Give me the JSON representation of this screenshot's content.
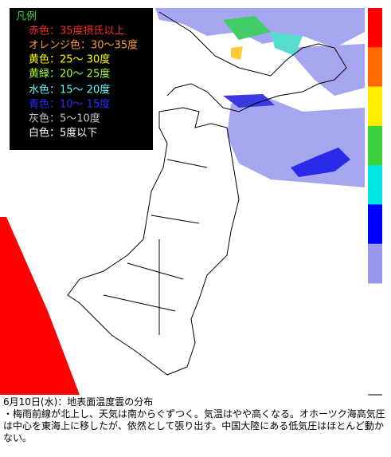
{
  "legend": {
    "title": "凡例",
    "items": [
      {
        "text": "赤色：35度摂氏以上",
        "color": "#ff2a2a"
      },
      {
        "text": "オレンジ色：30〜35度",
        "color": "#ff9d3a"
      },
      {
        "text": "黄色：25〜 30度",
        "color": "#ffff00"
      },
      {
        "text": "黄緑：20〜 25度",
        "color": "#a6ff3c"
      },
      {
        "text": "水色：15〜 20度",
        "color": "#5effff"
      },
      {
        "text": "青色：10〜 15度",
        "color": "#2a2aff"
      },
      {
        "text": "灰色：5〜10度",
        "color": "#c8c8c8"
      },
      {
        "text": "白色：5度以下",
        "color": "#ffffff"
      }
    ]
  },
  "color_bar": {
    "colors": [
      "#ff0000",
      "#ff6a00",
      "#ffee00",
      "#3cd23c",
      "#00e6e6",
      "#0000ff",
      "#9999ee"
    ]
  },
  "caption": {
    "title": "6月10日(水)：地表面温度雲の分布",
    "text": "・梅雨前線が北上し、天気は南からぐずつく。気温はやや高くなる。オホーツク海高気圧は中心を東海上に移したが、依然として張り出す。中国大陸にある低気圧はほとんど動かない。"
  }
}
